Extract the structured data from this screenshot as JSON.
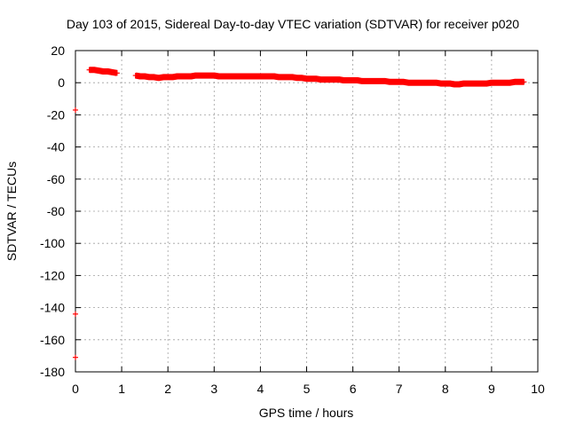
{
  "chart_data": {
    "type": "scatter",
    "title": "Day 103 of 2015, Sidereal Day-to-day VTEC variation (SDTVAR) for receiver p020",
    "xlabel": "GPS time / hours",
    "ylabel": "SDTVAR / TECUs",
    "xlim": [
      0,
      10
    ],
    "ylim": [
      -180,
      20
    ],
    "x_ticks": [
      "0",
      "1",
      "2",
      "3",
      "4",
      "5",
      "6",
      "7",
      "8",
      "9",
      "10"
    ],
    "y_ticks": [
      "20",
      "0",
      "-20",
      "-40",
      "-60",
      "-80",
      "-100",
      "-120",
      "-140",
      "-160",
      "-180"
    ],
    "grid": true,
    "marker": "plus",
    "series_color": "#ff0000",
    "series": [
      {
        "points": [
          [
            0.0,
            -17
          ],
          [
            0.0,
            -144
          ],
          [
            0.0,
            -171
          ],
          [
            0.3,
            8
          ],
          [
            0.4,
            8
          ],
          [
            0.5,
            7.5
          ],
          [
            0.6,
            7
          ],
          [
            0.7,
            7
          ],
          [
            0.8,
            6.5
          ],
          [
            0.9,
            6
          ],
          [
            1.3,
            4.5
          ],
          [
            1.4,
            4
          ],
          [
            1.5,
            4
          ],
          [
            1.6,
            3.5
          ],
          [
            1.7,
            3.5
          ],
          [
            1.8,
            3
          ],
          [
            1.9,
            3.5
          ],
          [
            2.0,
            3.5
          ],
          [
            2.1,
            3.5
          ],
          [
            2.2,
            4
          ],
          [
            2.3,
            4
          ],
          [
            2.4,
            4
          ],
          [
            2.5,
            4
          ],
          [
            2.6,
            4.5
          ],
          [
            2.7,
            4.5
          ],
          [
            2.8,
            4.5
          ],
          [
            2.9,
            4.5
          ],
          [
            3.0,
            4.5
          ],
          [
            3.1,
            4
          ],
          [
            3.2,
            4
          ],
          [
            3.3,
            4
          ],
          [
            3.4,
            4
          ],
          [
            3.5,
            4
          ],
          [
            3.6,
            4
          ],
          [
            3.7,
            4
          ],
          [
            3.8,
            4
          ],
          [
            3.9,
            4
          ],
          [
            4.0,
            4
          ],
          [
            4.1,
            4
          ],
          [
            4.2,
            4
          ],
          [
            4.3,
            4
          ],
          [
            4.4,
            3.5
          ],
          [
            4.5,
            3.5
          ],
          [
            4.6,
            3.5
          ],
          [
            4.7,
            3.5
          ],
          [
            4.8,
            3
          ],
          [
            4.9,
            3
          ],
          [
            5.0,
            2.5
          ],
          [
            5.1,
            2.5
          ],
          [
            5.2,
            2.5
          ],
          [
            5.3,
            2
          ],
          [
            5.4,
            2
          ],
          [
            5.5,
            2
          ],
          [
            5.6,
            2
          ],
          [
            5.7,
            2
          ],
          [
            5.8,
            1.5
          ],
          [
            5.9,
            1.5
          ],
          [
            6.0,
            1.5
          ],
          [
            6.1,
            1.5
          ],
          [
            6.2,
            1
          ],
          [
            6.3,
            1
          ],
          [
            6.4,
            1
          ],
          [
            6.5,
            1
          ],
          [
            6.6,
            1
          ],
          [
            6.7,
            1
          ],
          [
            6.8,
            0.5
          ],
          [
            6.9,
            0.5
          ],
          [
            7.0,
            0.5
          ],
          [
            7.1,
            0.5
          ],
          [
            7.2,
            0
          ],
          [
            7.3,
            0
          ],
          [
            7.4,
            0
          ],
          [
            7.5,
            0
          ],
          [
            7.6,
            0
          ],
          [
            7.7,
            0
          ],
          [
            7.8,
            0
          ],
          [
            7.9,
            -0.5
          ],
          [
            8.0,
            -0.5
          ],
          [
            8.1,
            -0.5
          ],
          [
            8.2,
            -1
          ],
          [
            8.3,
            -1
          ],
          [
            8.4,
            -0.5
          ],
          [
            8.5,
            -0.5
          ],
          [
            8.6,
            -0.5
          ],
          [
            8.7,
            -0.5
          ],
          [
            8.8,
            -0.5
          ],
          [
            8.9,
            -0.5
          ],
          [
            9.0,
            0
          ],
          [
            9.1,
            0
          ],
          [
            9.2,
            0
          ],
          [
            9.3,
            0
          ],
          [
            9.4,
            0
          ],
          [
            9.5,
            0.5
          ],
          [
            9.6,
            0.5
          ],
          [
            9.7,
            0.5
          ]
        ]
      }
    ]
  }
}
